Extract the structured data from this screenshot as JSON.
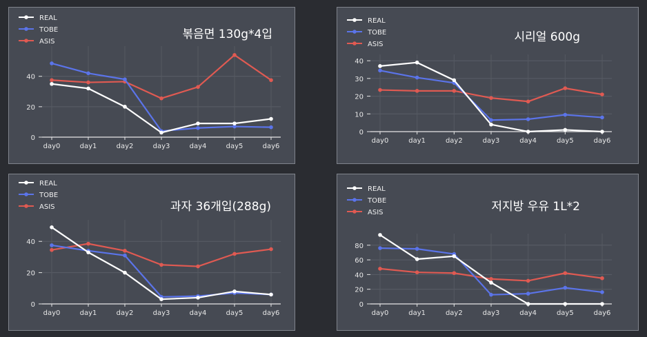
{
  "colors": {
    "REAL": "#ffffff",
    "TOBE": "#5b74ea",
    "ASIS": "#e05a52"
  },
  "chart_data": [
    {
      "type": "line",
      "title": "볶음면 130g*4입",
      "categories": [
        "day0",
        "day1",
        "day2",
        "day3",
        "day4",
        "day5",
        "day6"
      ],
      "ylim": [
        0,
        58
      ],
      "yticks": [
        0,
        20,
        40
      ],
      "grid": true,
      "legend": "top-left",
      "series": [
        {
          "name": "REAL",
          "values": [
            35,
            32,
            20,
            3,
            9,
            9,
            12
          ]
        },
        {
          "name": "TOBE",
          "values": [
            48.5,
            42,
            38,
            4,
            6,
            7,
            6.5
          ]
        },
        {
          "name": "ASIS",
          "values": [
            37.5,
            36,
            36.5,
            25.5,
            33,
            54,
            37.5
          ]
        }
      ]
    },
    {
      "type": "line",
      "title": "시리얼 600g",
      "categories": [
        "day0",
        "day1",
        "day2",
        "day3",
        "day4",
        "day5",
        "day6"
      ],
      "ylim": [
        0,
        42
      ],
      "yticks": [
        0,
        10,
        20,
        30,
        40
      ],
      "grid": true,
      "legend": "top-left",
      "series": [
        {
          "name": "REAL",
          "values": [
            37,
            39,
            29,
            4,
            0,
            1,
            0
          ]
        },
        {
          "name": "TOBE",
          "values": [
            34.5,
            30.5,
            27.5,
            6.5,
            7,
            9.5,
            8
          ]
        },
        {
          "name": "ASIS",
          "values": [
            23.5,
            23,
            23,
            19,
            17,
            24.5,
            21
          ]
        }
      ]
    },
    {
      "type": "line",
      "title": "과자 36개입(288g)",
      "categories": [
        "day0",
        "day1",
        "day2",
        "day3",
        "day4",
        "day5",
        "day6"
      ],
      "ylim": [
        0,
        52
      ],
      "yticks": [
        0,
        20,
        40
      ],
      "grid": true,
      "legend": "top-left",
      "series": [
        {
          "name": "REAL",
          "values": [
            49,
            33,
            20,
            3,
            4,
            8,
            6
          ]
        },
        {
          "name": "TOBE",
          "values": [
            37.5,
            34,
            31,
            4.5,
            5,
            7,
            6
          ]
        },
        {
          "name": "ASIS",
          "values": [
            34.5,
            38.5,
            34,
            25,
            24,
            32,
            35
          ]
        }
      ]
    },
    {
      "type": "line",
      "title": "저지방 우유 1L*2",
      "categories": [
        "day0",
        "day1",
        "day2",
        "day3",
        "day4",
        "day5",
        "day6"
      ],
      "ylim": [
        0,
        92
      ],
      "yticks": [
        0,
        20,
        40,
        60,
        80
      ],
      "grid": true,
      "legend": "top-left",
      "series": [
        {
          "name": "REAL",
          "values": [
            94,
            61,
            65,
            29,
            0,
            0,
            0
          ]
        },
        {
          "name": "TOBE",
          "values": [
            76,
            75,
            68,
            12.5,
            14,
            22,
            16
          ]
        },
        {
          "name": "ASIS",
          "values": [
            48,
            43,
            42,
            34,
            31.5,
            42,
            35
          ]
        }
      ]
    }
  ]
}
